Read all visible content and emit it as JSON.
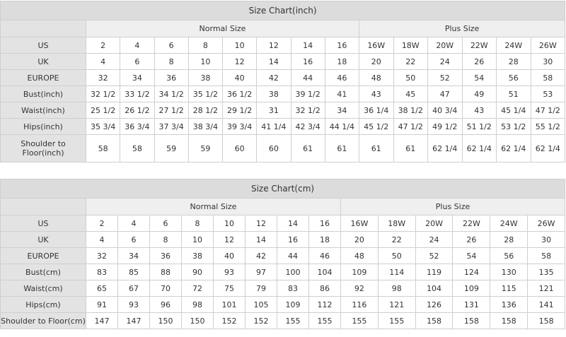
{
  "tables": [
    {
      "title": "Size Chart(inch)",
      "groups": [
        "Normal Size",
        "Plus Size"
      ],
      "rows": [
        {
          "label": "US",
          "cells": [
            "2",
            "4",
            "6",
            "8",
            "10",
            "12",
            "14",
            "16",
            "16W",
            "18W",
            "20W",
            "22W",
            "24W",
            "26W"
          ]
        },
        {
          "label": "UK",
          "cells": [
            "4",
            "6",
            "8",
            "10",
            "12",
            "14",
            "16",
            "18",
            "20",
            "22",
            "24",
            "26",
            "28",
            "30"
          ]
        },
        {
          "label": "EUROPE",
          "cells": [
            "32",
            "34",
            "36",
            "38",
            "40",
            "42",
            "44",
            "46",
            "48",
            "50",
            "52",
            "54",
            "56",
            "58"
          ]
        },
        {
          "label": "Bust(inch)",
          "cells": [
            "32 1/2",
            "33 1/2",
            "34 1/2",
            "35 1/2",
            "36 1/2",
            "38",
            "39 1/2",
            "41",
            "43",
            "45",
            "47",
            "49",
            "51",
            "53"
          ]
        },
        {
          "label": "Waist(inch)",
          "cells": [
            "25 1/2",
            "26 1/2",
            "27 1/2",
            "28 1/2",
            "29 1/2",
            "31",
            "32 1/2",
            "34",
            "36 1/4",
            "38 1/2",
            "40 3/4",
            "43",
            "45 1/4",
            "47 1/2"
          ]
        },
        {
          "label": "Hips(inch)",
          "cells": [
            "35 3/4",
            "36 3/4",
            "37 3/4",
            "38 3/4",
            "39 3/4",
            "41 1/4",
            "42 3/4",
            "44 1/4",
            "45 1/2",
            "47 1/2",
            "49 1/2",
            "51 1/2",
            "53 1/2",
            "55 1/2"
          ]
        },
        {
          "label": "Shoulder to Floor(inch)",
          "cells": [
            "58",
            "58",
            "59",
            "59",
            "60",
            "60",
            "61",
            "61",
            "61",
            "61",
            "62 1/4",
            "62 1/4",
            "62 1/4",
            "62 1/4"
          ]
        }
      ]
    },
    {
      "title": "Size Chart(cm)",
      "groups": [
        "Normal Size",
        "Plus Size"
      ],
      "rows": [
        {
          "label": "US",
          "cells": [
            "2",
            "4",
            "6",
            "8",
            "10",
            "12",
            "14",
            "16",
            "16W",
            "18W",
            "20W",
            "22W",
            "24W",
            "26W"
          ]
        },
        {
          "label": "UK",
          "cells": [
            "4",
            "6",
            "8",
            "10",
            "12",
            "14",
            "16",
            "18",
            "20",
            "22",
            "24",
            "26",
            "28",
            "30"
          ]
        },
        {
          "label": "EUROPE",
          "cells": [
            "32",
            "34",
            "36",
            "38",
            "40",
            "42",
            "44",
            "46",
            "48",
            "50",
            "52",
            "54",
            "56",
            "58"
          ]
        },
        {
          "label": "Bust(cm)",
          "cells": [
            "83",
            "85",
            "88",
            "90",
            "93",
            "97",
            "100",
            "104",
            "109",
            "114",
            "119",
            "124",
            "130",
            "135"
          ]
        },
        {
          "label": "Waist(cm)",
          "cells": [
            "65",
            "67",
            "70",
            "72",
            "75",
            "79",
            "83",
            "86",
            "92",
            "98",
            "104",
            "109",
            "115",
            "121"
          ]
        },
        {
          "label": "Hips(cm)",
          "cells": [
            "91",
            "93",
            "96",
            "98",
            "101",
            "105",
            "109",
            "112",
            "116",
            "121",
            "126",
            "131",
            "136",
            "141"
          ]
        },
        {
          "label": "Shoulder to Floor(cm)",
          "cells": [
            "147",
            "147",
            "150",
            "150",
            "152",
            "152",
            "155",
            "155",
            "155",
            "155",
            "158",
            "158",
            "158",
            "158"
          ]
        }
      ]
    }
  ]
}
